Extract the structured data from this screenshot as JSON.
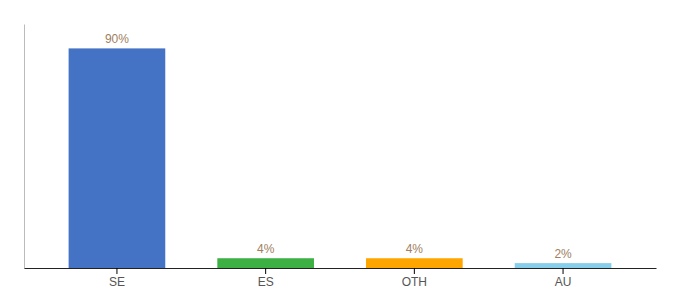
{
  "chart_data": {
    "type": "bar",
    "categories": [
      "SE",
      "ES",
      "OTH",
      "AU"
    ],
    "values": [
      90,
      4,
      4,
      2
    ],
    "value_labels": [
      "90%",
      "4%",
      "4%",
      "2%"
    ],
    "colors": [
      "#4472C4",
      "#3CB043",
      "#FFA500",
      "#87CEEB"
    ],
    "ylim": [
      0,
      100
    ],
    "data_labels": true,
    "tick_labels": "x"
  }
}
